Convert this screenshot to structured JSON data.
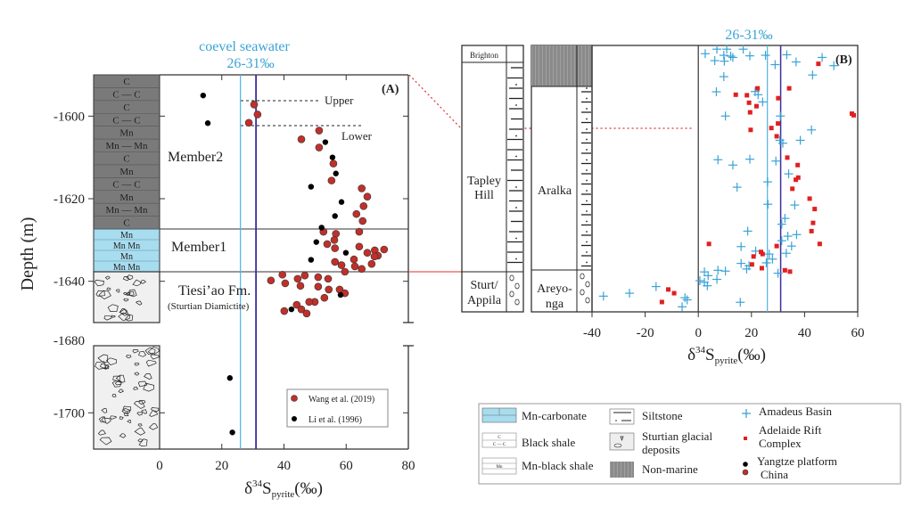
{
  "colors": {
    "seawater_light": "#4fb3e0",
    "seawater_dark": "#3a2fa0",
    "wang": "#c0302a",
    "li": "#000000",
    "amadeus": "#3aa3d6",
    "adelaide": "#e02020",
    "mn_carbonate": "#a8dcef",
    "black_shale": "#7a7a7a",
    "connector": "#e03030"
  },
  "chart_data": [
    {
      "type": "scatter",
      "panel_label": "(A)",
      "title": "coevel seawater",
      "subtitle": "26-31‰",
      "xlabel": {
        "delta": "δ",
        "sup": "34",
        "main": "S",
        "sub": "pyrite",
        "unit": "(‰)"
      },
      "ylabel": "Depth (m)",
      "xlim": [
        0,
        80
      ],
      "xticks": [
        "0",
        "20",
        "40",
        "60",
        "80"
      ],
      "ylim_upper": [
        -1650,
        -1590
      ],
      "ylim_lower": [
        -1710,
        -1681.5
      ],
      "yticks": [
        "-1600",
        "-1620",
        "-1640",
        "-1680",
        "-1700"
      ],
      "seawater_range": [
        26,
        31
      ],
      "units": {
        "upper": "Member2",
        "middle": "Member1",
        "lower": "Tiesi’ao Fm.",
        "lower_note": "(Sturtian Diamictite)"
      },
      "annotations": {
        "upper": "Upper",
        "lower": "Lower"
      },
      "column_rows_shale": [
        "C",
        "C — C",
        "C",
        "C — C",
        "Mn",
        "Mn — Mn",
        "C",
        "Mn",
        "C — C",
        "Mn",
        "Mn — Mn",
        "C"
      ],
      "column_rows_mn": [
        "Mn",
        "Mn  Mn",
        "Mn",
        "Mn  Mn"
      ],
      "legend": [
        "Wang et al. (2019)",
        "Li et al. (1996)"
      ],
      "series": [
        {
          "name": "Wang et al. (2019)",
          "points": [
            [
              30.4,
              -1597.2
            ],
            [
              31.5,
              -1599.6
            ],
            [
              28.7,
              -1601.6
            ],
            [
              51.3,
              -1603.5
            ],
            [
              45.6,
              -1605.6
            ],
            [
              51.3,
              -1607.6
            ],
            [
              55.9,
              -1611.5
            ],
            [
              55.3,
              -1615.6
            ],
            [
              65.0,
              -1617.5
            ],
            [
              66.8,
              -1619.5
            ],
            [
              65.6,
              -1621.8
            ],
            [
              63.3,
              -1623.7
            ],
            [
              65.3,
              -1625.4
            ],
            [
              52.7,
              -1628
            ],
            [
              64.2,
              -1628
            ],
            [
              56.7,
              -1628.5
            ],
            [
              56.2,
              -1630
            ],
            [
              53.9,
              -1631
            ],
            [
              56.4,
              -1632
            ],
            [
              64.2,
              -1631.6
            ],
            [
              69.2,
              -1632.5
            ],
            [
              72.2,
              -1632.3
            ],
            [
              66.8,
              -1633.1
            ],
            [
              70.2,
              -1633.8
            ],
            [
              69.1,
              -1634
            ],
            [
              62.5,
              -1634.7
            ],
            [
              56.4,
              -1635.3
            ],
            [
              68.2,
              -1635.8
            ],
            [
              58.5,
              -1636.1
            ],
            [
              62.8,
              -1636.4
            ],
            [
              65.0,
              -1637
            ],
            [
              59.6,
              -1637.7
            ],
            [
              39.5,
              -1638.4
            ],
            [
              46.7,
              -1638.6
            ],
            [
              51.0,
              -1639
            ],
            [
              44.4,
              -1639.4
            ],
            [
              54.2,
              -1639.4
            ],
            [
              35.8,
              -1639.8
            ],
            [
              40.4,
              -1640.5
            ],
            [
              45.3,
              -1641.1
            ],
            [
              51.0,
              -1641.3
            ],
            [
              54.4,
              -1642
            ],
            [
              57.9,
              -1642
            ],
            [
              59.6,
              -1642.9
            ],
            [
              53.0,
              -1644
            ],
            [
              49.9,
              -1645
            ],
            [
              48.1,
              -1645
            ],
            [
              44.1,
              -1645.7
            ],
            [
              45.6,
              -1646.8
            ],
            [
              40.1,
              -1647.2
            ],
            [
              47.3,
              -1647.8
            ]
          ]
        },
        {
          "name": "Li et al. (1996)",
          "points": [
            [
              14.0,
              -1595
            ],
            [
              15.5,
              -1601.7
            ],
            [
              53.3,
              -1606.3
            ],
            [
              55.6,
              -1610
            ],
            [
              56.7,
              -1613.9
            ],
            [
              48.7,
              -1617.1
            ],
            [
              58.5,
              -1620.8
            ],
            [
              56.4,
              -1624.2
            ],
            [
              52.1,
              -1627
            ],
            [
              50.4,
              -1630.5
            ],
            [
              59.9,
              -1633.1
            ],
            [
              48.7,
              -1634.8
            ],
            [
              58.2,
              -1643.3
            ],
            [
              42.4,
              -1646.8
            ],
            [
              22.6,
              -1690.4
            ],
            [
              23.4,
              -1705.4
            ]
          ]
        }
      ]
    },
    {
      "type": "scatter",
      "panel_label": "(B)",
      "subtitle": "26-31‰",
      "xlabel": {
        "delta": "δ",
        "sup": "34",
        "main": "S",
        "sub": "pyrite",
        "unit": "(‰)"
      },
      "xlim": [
        -40,
        60
      ],
      "xticks": [
        "-40",
        "-20",
        "0",
        "20",
        "40",
        "60"
      ],
      "ylim_relative_height": [
        0,
        100
      ],
      "seawater_range": [
        26,
        31
      ],
      "column1_units": {
        "top": "Brighton",
        "middle_1": "Tapley",
        "middle_2": "Hill",
        "bottom_1": "Sturt/",
        "bottom_2": "Appila"
      },
      "column2_units": {
        "middle": "Aralka",
        "bottom_1": "Areyo-",
        "bottom_2": "nga"
      },
      "series": [
        {
          "name": "Amadeus Basin",
          "points": [
            [
              2.6,
              96.9
            ],
            [
              7.0,
              98.6
            ],
            [
              10.7,
              98.6
            ],
            [
              16.9,
              98.6
            ],
            [
              9.6,
              96.3
            ],
            [
              12.2,
              96.0
            ],
            [
              19.4,
              96.1
            ],
            [
              25.3,
              96.3
            ],
            [
              33.3,
              96.5
            ],
            [
              6.2,
              94.3
            ],
            [
              9.8,
              94.1
            ],
            [
              13.0,
              95.5
            ],
            [
              36.8,
              93.8
            ],
            [
              46.6,
              95.5
            ],
            [
              51.0,
              92.4
            ],
            [
              28.9,
              92.8
            ],
            [
              43.0,
              88.9
            ],
            [
              9.6,
              88.3
            ],
            [
              6.8,
              82.6
            ],
            [
              21.4,
              82.7
            ],
            [
              22.5,
              81.5
            ],
            [
              24.2,
              78.8
            ],
            [
              10.2,
              73.5
            ],
            [
              30.9,
              73.5
            ],
            [
              42.6,
              68.3
            ],
            [
              30.7,
              64.4
            ],
            [
              31.8,
              63.3
            ],
            [
              38.4,
              64.4
            ],
            [
              7.4,
              57.1
            ],
            [
              19.4,
              57.3
            ],
            [
              29.2,
              56.6
            ],
            [
              13.0,
              55.1
            ],
            [
              34.0,
              51.8
            ],
            [
              26.1,
              48.8
            ],
            [
              14.6,
              46.8
            ],
            [
              26.2,
              40.4
            ],
            [
              36.3,
              40.1
            ],
            [
              32.6,
              35.1
            ],
            [
              31.4,
              32.9
            ],
            [
              18.6,
              30.3
            ],
            [
              37.0,
              29.0
            ],
            [
              33.7,
              28.4
            ],
            [
              31.4,
              26.7
            ],
            [
              16.1,
              24.5
            ],
            [
              35.1,
              24.7
            ],
            [
              21.6,
              22.8
            ],
            [
              26.7,
              21.7
            ],
            [
              33.1,
              22.0
            ],
            [
              27.9,
              19.8
            ],
            [
              25.6,
              18.4
            ],
            [
              16.1,
              18.2
            ],
            [
              19.1,
              17.3
            ],
            [
              18.2,
              16.1
            ],
            [
              7.4,
              15.6
            ],
            [
              10.2,
              15.3
            ],
            [
              2.3,
              15.0
            ],
            [
              3.7,
              13.6
            ],
            [
              0.6,
              11.7
            ],
            [
              30.0,
              14.5
            ],
            [
              2.3,
              11.1
            ],
            [
              3.4,
              9.8
            ],
            [
              7.0,
              12.2
            ],
            [
              -35.7,
              5.9
            ],
            [
              -25.9,
              7.0
            ],
            [
              -15.9,
              9.5
            ],
            [
              -5.0,
              5.3
            ],
            [
              -4.2,
              4.5
            ],
            [
              -6.1,
              1.9
            ],
            [
              15.8,
              3.6
            ]
          ]
        },
        {
          "name": "Adelaide Rift Complex",
          "points": [
            [
              45.2,
              93.1
            ],
            [
              34.2,
              83.9
            ],
            [
              22.3,
              83.9
            ],
            [
              14.1,
              81.5
            ],
            [
              18.3,
              81.3
            ],
            [
              30.1,
              80.2
            ],
            [
              19.1,
              78.5
            ],
            [
              21.9,
              77.2
            ],
            [
              19.5,
              74.9
            ],
            [
              57.8,
              74.4
            ],
            [
              58.5,
              73.8
            ],
            [
              30.0,
              70.7
            ],
            [
              27.5,
              69.0
            ],
            [
              19.7,
              68.3
            ],
            [
              29.5,
              65.9
            ],
            [
              33.5,
              57.9
            ],
            [
              37.4,
              55.1
            ],
            [
              37.6,
              50.4
            ],
            [
              36.7,
              49.6
            ],
            [
              35.4,
              46.2
            ],
            [
              41.9,
              42.5
            ],
            [
              43.8,
              38.6
            ],
            [
              43.2,
              33.4
            ],
            [
              42.6,
              30.3
            ],
            [
              45.7,
              25.5
            ],
            [
              4.0,
              25.5
            ],
            [
              29.5,
              24.7
            ],
            [
              23.6,
              22.5
            ],
            [
              24.2,
              21.7
            ],
            [
              20.8,
              20.8
            ],
            [
              20.2,
              17.8
            ],
            [
              23.9,
              16.4
            ],
            [
              32.6,
              15.6
            ],
            [
              34.5,
              15.1
            ],
            [
              -11.3,
              8.4
            ],
            [
              -9.1,
              7.0
            ],
            [
              -13.7,
              3.7
            ]
          ]
        }
      ]
    }
  ],
  "legend": {
    "col1": [
      "Mn-carbonate",
      "Black shale",
      "Mn-black shale"
    ],
    "col2": [
      "Siltstone",
      "Sturtian glacial",
      "deposits",
      "Non-marine"
    ],
    "col3": [
      "Amadeus Basin",
      "Adelaide Rift",
      "Complex",
      "Yangtze platform",
      "China"
    ]
  }
}
